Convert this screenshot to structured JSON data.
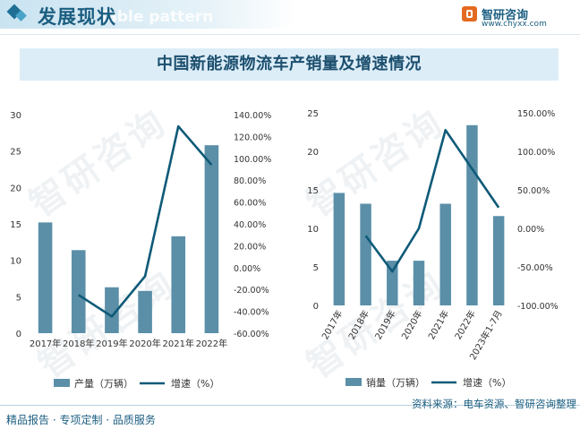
{
  "header": {
    "section_title": "发展现状",
    "bg_pattern_text": "Table pattern",
    "brand_name": "智研咨询",
    "brand_url": "www.chyxx.com"
  },
  "title": "中国新能源物流车产销量及增速情况",
  "watermark": "智研咨询",
  "colors": {
    "bar": "#5b8fa8",
    "line": "#0e5a78",
    "title_bg": "#dcedf8",
    "accent": "#1b5e80"
  },
  "chart_data": [
    {
      "type": "bar",
      "categories": [
        "2017年",
        "2018年",
        "2019年",
        "2020年",
        "2021年",
        "2022年"
      ],
      "series": [
        {
          "name": "产量（万辆）",
          "type": "bar",
          "axis": "left",
          "values": [
            15.2,
            11.4,
            6.3,
            5.8,
            13.3,
            25.8
          ]
        },
        {
          "name": "增速（%）",
          "type": "line",
          "axis": "right",
          "values": [
            null,
            -25.0,
            -44.7,
            -7.9,
            129.3,
            94.0
          ]
        }
      ],
      "yticks_left": [
        "0",
        "5",
        "10",
        "15",
        "20",
        "25",
        "30"
      ],
      "ylim_left": [
        0,
        30
      ],
      "yticks_right": [
        "-60.00%",
        "-40.00%",
        "-20.00%",
        "0.00%",
        "20.00%",
        "40.00%",
        "60.00%",
        "80.00%",
        "100.00%",
        "120.00%",
        "140.00%"
      ],
      "ylim_right": [
        -60,
        140
      ],
      "legend_position": "bottom"
    },
    {
      "type": "bar",
      "categories": [
        "2017年",
        "2018年",
        "2019年",
        "2020年",
        "2021年",
        "2022年",
        "2023年1-7月"
      ],
      "series": [
        {
          "name": "销量（万辆）",
          "type": "bar",
          "axis": "left",
          "values": [
            14.6,
            13.2,
            5.8,
            5.8,
            13.2,
            23.4,
            11.6
          ]
        },
        {
          "name": "增速（%）",
          "type": "line",
          "axis": "right",
          "values": [
            null,
            -9.6,
            -56.0,
            0.0,
            127.6,
            77.3,
            27.0
          ]
        }
      ],
      "yticks_left": [
        "0",
        "5",
        "10",
        "15",
        "20",
        "25"
      ],
      "ylim_left": [
        0,
        25
      ],
      "yticks_right": [
        "-100.00%",
        "-50.00%",
        "0.00%",
        "50.00%",
        "100.00%",
        "150.00%"
      ],
      "ylim_right": [
        -100,
        150
      ],
      "legend_position": "bottom"
    }
  ],
  "footer": {
    "left": "精品报告 · 专项定制 · 品质服务",
    "right": "资料来源：电车资源、智研咨询整理"
  }
}
